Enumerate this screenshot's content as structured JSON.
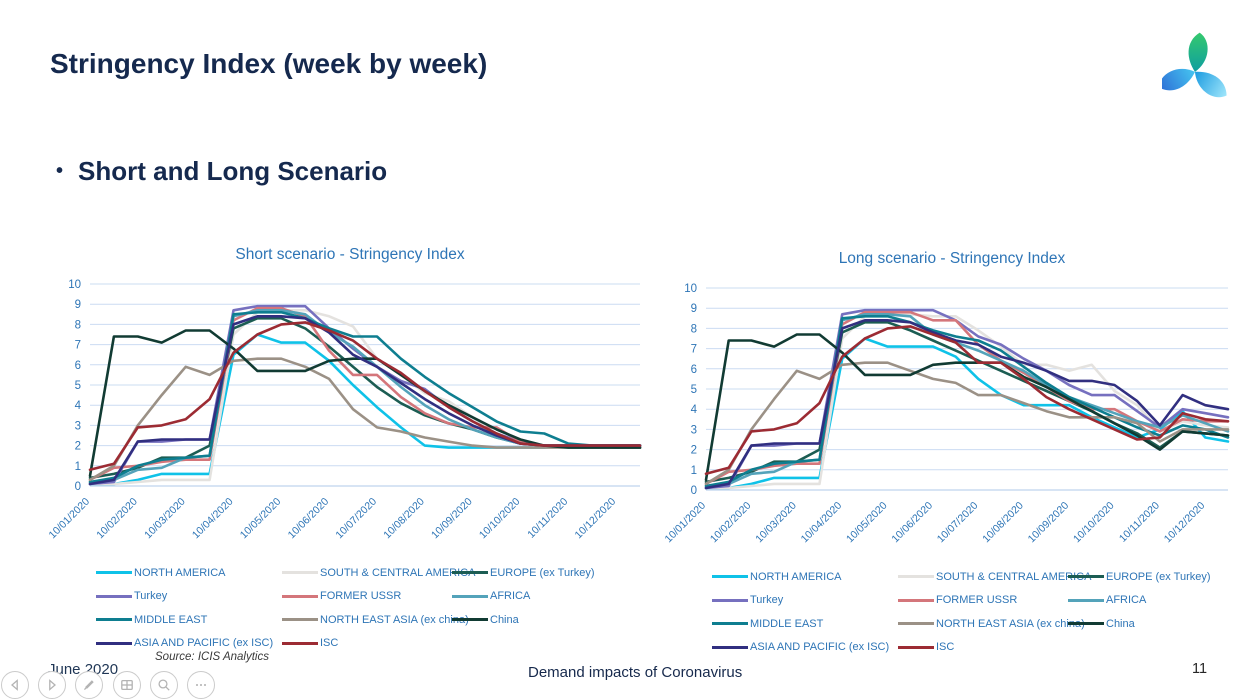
{
  "slide": {
    "title": "Stringency Index (week by week)",
    "bullet_char": "•",
    "bullet_text": "Short and Long Scenario",
    "footer": {
      "date": "June 2020",
      "source": "Source: ICIS Analytics",
      "center": "Demand impacts of Coronavirus",
      "page_number": "11"
    }
  },
  "colors": {
    "heading_text": "#15294E",
    "chart_title_text": "#2E75B6",
    "axis_text": "#2E75B6",
    "gridline": "#CBDCF2",
    "axis_line": "#AFC8E8",
    "legend_text": "#2E75B6"
  },
  "logo": {
    "name": "icis-logo",
    "petal_colors": [
      "#2EC276",
      "#29B4EC",
      "#2E6FD6"
    ]
  },
  "toolbar": {
    "buttons": [
      {
        "name": "previous-slide-button",
        "icon": "previous-arrow-icon"
      },
      {
        "name": "next-slide-button",
        "icon": "next-arrow-icon"
      },
      {
        "name": "pen-button",
        "icon": "pen-icon"
      },
      {
        "name": "see-all-slides-button",
        "icon": "slides-grid-icon"
      },
      {
        "name": "zoom-button",
        "icon": "magnifier-icon"
      },
      {
        "name": "more-options-button",
        "icon": "ellipsis-icon"
      }
    ]
  },
  "chart_data": [
    {
      "type": "line",
      "title": "Short scenario - Stringency Index",
      "x_labels": [
        "10/01/2020",
        "10/02/2020",
        "10/03/2020",
        "10/04/2020",
        "10/05/2020",
        "10/06/2020",
        "10/07/2020",
        "10/08/2020",
        "10/09/2020",
        "10/10/2020",
        "10/11/2020",
        "10/12/2020"
      ],
      "x_note": "weekly data, labels every month, 24 sampled points (2 per month)",
      "ylim": [
        0,
        10
      ],
      "grid": true,
      "legend_position": "bottom",
      "series": [
        {
          "name": "NORTH AMERICA",
          "color": "#0FC2E8",
          "values": [
            0.1,
            0.1,
            0.3,
            0.6,
            0.6,
            0.6,
            6.5,
            7.5,
            7.1,
            7.1,
            6.2,
            5.0,
            3.9,
            2.9,
            2.0,
            1.9,
            1.9,
            1.9,
            1.9,
            1.9,
            2.0,
            2.0,
            2.0,
            2.0
          ]
        },
        {
          "name": "SOUTH & CENTRAL AMERICA",
          "color": "#E4E2DF",
          "values": [
            0.1,
            0.1,
            0.2,
            0.3,
            0.3,
            0.3,
            7.5,
            8.6,
            8.7,
            8.7,
            8.4,
            7.9,
            6.3,
            5.5,
            4.6,
            4.2,
            3.4,
            2.6,
            2.1,
            2.0,
            2.0,
            2.0,
            2.0,
            2.0
          ]
        },
        {
          "name": "EUROPE (ex Turkey)",
          "color": "#1C5D53",
          "values": [
            0.4,
            0.6,
            0.9,
            1.4,
            1.4,
            2.0,
            7.8,
            8.3,
            8.3,
            7.8,
            6.9,
            5.9,
            4.9,
            4.1,
            3.5,
            3.1,
            2.8,
            2.4,
            2.1,
            2.0,
            2.0,
            2.0,
            1.9,
            1.9
          ]
        },
        {
          "name": "Turkey",
          "color": "#7670BF",
          "values": [
            0.1,
            0.2,
            2.2,
            2.2,
            2.3,
            2.3,
            8.7,
            8.9,
            8.9,
            8.9,
            7.8,
            6.8,
            5.9,
            5.2,
            4.8,
            3.9,
            3.2,
            2.6,
            2.2,
            2.0,
            2.0,
            2.0,
            2.0,
            2.0
          ]
        },
        {
          "name": "FORMER USSR",
          "color": "#D4767B",
          "values": [
            0.3,
            0.9,
            1.0,
            1.2,
            1.3,
            1.3,
            8.2,
            8.8,
            8.8,
            8.4,
            6.7,
            5.5,
            5.5,
            4.4,
            3.6,
            3.1,
            2.9,
            2.9,
            2.2,
            2.0,
            2.0,
            2.0,
            2.0,
            2.0
          ]
        },
        {
          "name": "AFRICA",
          "color": "#54A3BA",
          "values": [
            0.2,
            0.3,
            0.8,
            0.9,
            1.4,
            1.5,
            8.4,
            8.7,
            8.7,
            8.5,
            7.6,
            6.9,
            5.9,
            4.9,
            4.0,
            3.3,
            2.8,
            2.4,
            2.1,
            2.0,
            2.0,
            2.0,
            2.0,
            2.0
          ]
        },
        {
          "name": "MIDDLE EAST",
          "color": "#0E7E90",
          "values": [
            0.2,
            0.4,
            1.0,
            1.3,
            1.4,
            1.5,
            8.5,
            8.6,
            8.6,
            8.3,
            7.8,
            7.4,
            7.4,
            6.3,
            5.4,
            4.6,
            3.9,
            3.2,
            2.7,
            2.6,
            2.1,
            2.0,
            2.0,
            2.0
          ]
        },
        {
          "name": "NORTH EAST ASIA (ex china)",
          "color": "#9B9186",
          "values": [
            0.3,
            1.0,
            3.0,
            4.5,
            5.9,
            5.5,
            6.2,
            6.3,
            6.3,
            5.9,
            5.3,
            3.8,
            2.9,
            2.7,
            2.4,
            2.2,
            2.0,
            1.9,
            1.9,
            1.9,
            1.9,
            1.9,
            1.9,
            1.9
          ]
        },
        {
          "name": "China",
          "color": "#113B33",
          "values": [
            0.5,
            7.4,
            7.4,
            7.1,
            7.7,
            7.7,
            6.8,
            5.7,
            5.7,
            5.7,
            6.2,
            6.3,
            6.3,
            5.5,
            4.7,
            4.0,
            3.4,
            2.8,
            2.3,
            2.0,
            1.9,
            1.9,
            1.9,
            1.9
          ]
        },
        {
          "name": "ASIA AND PACIFIC (ex ISC)",
          "color": "#312F80",
          "values": [
            0.1,
            0.3,
            2.2,
            2.3,
            2.3,
            2.3,
            8.0,
            8.4,
            8.4,
            8.3,
            7.6,
            6.5,
            5.9,
            5.1,
            4.3,
            3.6,
            3.0,
            2.5,
            2.1,
            2.0,
            2.0,
            2.0,
            2.0,
            2.0
          ]
        },
        {
          "name": "ISC",
          "color": "#9C2B33",
          "values": [
            0.8,
            1.1,
            2.9,
            3.0,
            3.3,
            4.3,
            6.6,
            7.5,
            8.0,
            8.1,
            7.7,
            7.2,
            6.3,
            5.6,
            4.7,
            3.9,
            3.2,
            2.6,
            2.1,
            2.0,
            2.0,
            2.0,
            2.0,
            2.0
          ]
        }
      ]
    },
    {
      "type": "line",
      "title": "Long scenario - Stringency Index",
      "x_labels": [
        "10/01/2020",
        "10/02/2020",
        "10/03/2020",
        "10/04/2020",
        "10/05/2020",
        "10/06/2020",
        "10/07/2020",
        "10/08/2020",
        "10/09/2020",
        "10/10/2020",
        "10/11/2020",
        "10/12/2020"
      ],
      "x_note": "weekly data, labels every month, 24 sampled points (2 per month)",
      "ylim": [
        0,
        10
      ],
      "grid": true,
      "legend_position": "bottom",
      "series": [
        {
          "name": "NORTH AMERICA",
          "color": "#0FC2E8",
          "values": [
            0.1,
            0.1,
            0.3,
            0.6,
            0.6,
            0.6,
            6.5,
            7.5,
            7.1,
            7.1,
            7.1,
            6.6,
            5.5,
            4.7,
            4.2,
            4.2,
            4.2,
            3.6,
            3.1,
            2.6,
            3.0,
            3.9,
            2.6,
            2.4
          ]
        },
        {
          "name": "SOUTH & CENTRAL AMERICA",
          "color": "#E4E2DF",
          "values": [
            0.1,
            0.1,
            0.2,
            0.3,
            0.3,
            0.3,
            7.5,
            8.6,
            8.7,
            8.7,
            8.6,
            8.6,
            7.9,
            7.1,
            6.2,
            6.2,
            5.9,
            6.2,
            4.9,
            4.2,
            2.9,
            3.4,
            3.2,
            3.1
          ]
        },
        {
          "name": "EUROPE (ex Turkey)",
          "color": "#1C5D53",
          "values": [
            0.4,
            0.6,
            0.9,
            1.4,
            1.4,
            2.0,
            7.8,
            8.3,
            8.3,
            7.9,
            7.4,
            6.9,
            6.4,
            5.9,
            5.4,
            4.9,
            4.4,
            3.9,
            3.3,
            2.8,
            2.1,
            2.9,
            2.8,
            2.7
          ]
        },
        {
          "name": "Turkey",
          "color": "#7670BF",
          "values": [
            0.1,
            0.2,
            2.2,
            2.2,
            2.3,
            2.3,
            8.7,
            8.9,
            8.9,
            8.9,
            8.9,
            8.4,
            7.6,
            7.2,
            6.5,
            5.9,
            5.2,
            4.7,
            4.7,
            3.9,
            3.1,
            4.0,
            3.8,
            3.6
          ]
        },
        {
          "name": "FORMER USSR",
          "color": "#D4767B",
          "values": [
            0.3,
            0.9,
            1.0,
            1.2,
            1.3,
            1.3,
            8.2,
            8.8,
            8.8,
            8.8,
            8.4,
            8.4,
            7.2,
            6.4,
            5.8,
            5.1,
            4.4,
            4.0,
            4.0,
            3.4,
            2.9,
            3.5,
            3.4,
            3.4
          ]
        },
        {
          "name": "AFRICA",
          "color": "#54A3BA",
          "values": [
            0.2,
            0.3,
            0.8,
            0.9,
            1.4,
            1.5,
            8.4,
            8.7,
            8.7,
            8.6,
            7.7,
            7.3,
            6.9,
            6.4,
            5.9,
            5.2,
            4.6,
            4.2,
            3.8,
            3.4,
            3.1,
            3.7,
            3.3,
            2.9
          ]
        },
        {
          "name": "MIDDLE EAST",
          "color": "#0E7E90",
          "values": [
            0.2,
            0.4,
            1.0,
            1.3,
            1.4,
            1.5,
            8.5,
            8.6,
            8.6,
            8.3,
            7.9,
            7.6,
            7.4,
            6.9,
            6.1,
            5.3,
            4.6,
            4.1,
            3.6,
            3.1,
            2.7,
            3.2,
            3.0,
            2.6
          ]
        },
        {
          "name": "NORTH EAST ASIA (ex china)",
          "color": "#9B9186",
          "values": [
            0.3,
            1.0,
            3.0,
            4.5,
            5.9,
            5.5,
            6.2,
            6.3,
            6.3,
            5.9,
            5.5,
            5.3,
            4.7,
            4.7,
            4.3,
            3.9,
            3.6,
            3.6,
            3.6,
            3.3,
            2.4,
            3.0,
            3.0,
            3.0
          ]
        },
        {
          "name": "China",
          "color": "#113B33",
          "values": [
            0.5,
            7.4,
            7.4,
            7.1,
            7.7,
            7.7,
            6.8,
            5.7,
            5.7,
            5.7,
            6.2,
            6.3,
            6.3,
            6.3,
            5.6,
            5.1,
            4.5,
            3.9,
            3.3,
            2.7,
            2.0,
            2.9,
            2.8,
            2.7
          ]
        },
        {
          "name": "ASIA AND PACIFIC (ex ISC)",
          "color": "#312F80",
          "values": [
            0.1,
            0.3,
            2.2,
            2.3,
            2.3,
            2.3,
            8.0,
            8.4,
            8.4,
            8.3,
            7.8,
            7.4,
            7.2,
            6.6,
            6.3,
            5.9,
            5.4,
            5.4,
            5.2,
            4.4,
            3.2,
            4.7,
            4.2,
            4.0
          ]
        },
        {
          "name": "ISC",
          "color": "#9C2B33",
          "values": [
            0.8,
            1.1,
            2.9,
            3.0,
            3.3,
            4.3,
            6.6,
            7.5,
            8.0,
            8.1,
            7.7,
            7.3,
            6.3,
            6.3,
            5.5,
            4.6,
            4.0,
            3.5,
            3.0,
            2.5,
            2.6,
            3.8,
            3.5,
            3.4
          ]
        }
      ]
    }
  ]
}
